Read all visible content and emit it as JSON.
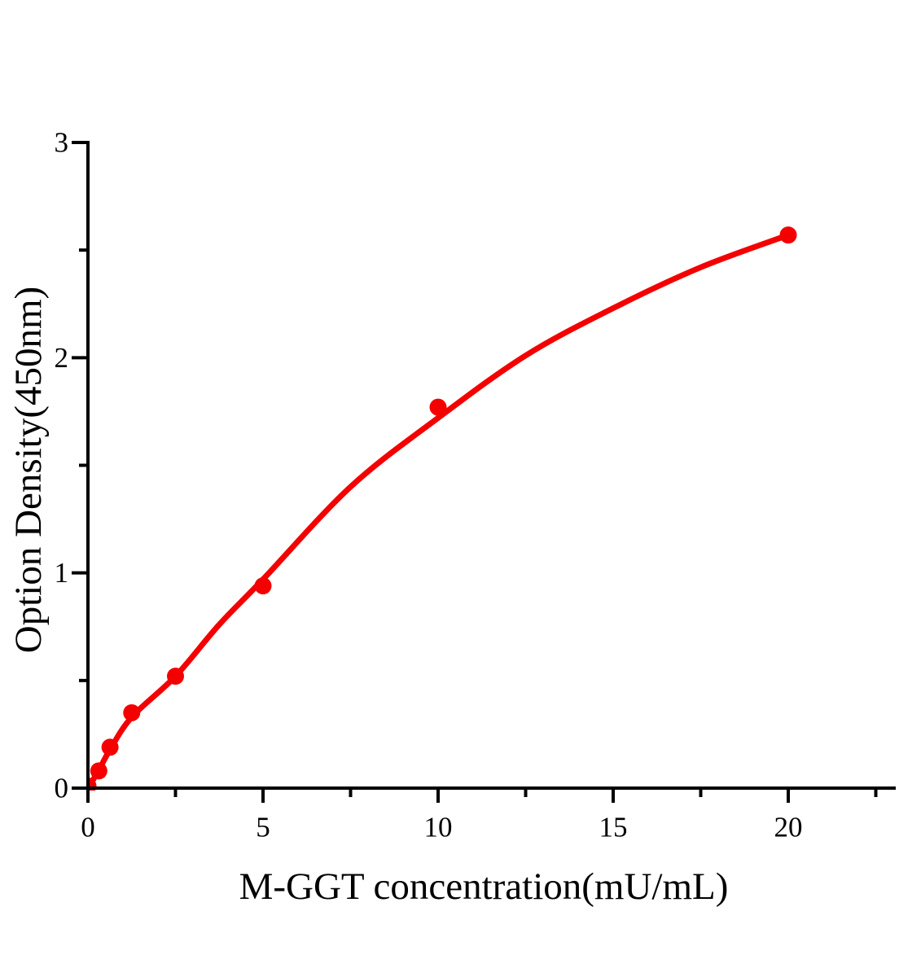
{
  "figure_background": "#ffffff",
  "chart_data": {
    "type": "scatter",
    "title": "",
    "xlabel": "M-GGT concentration(mU/mL)",
    "ylabel": "Option Density(450nm)",
    "xlim": [
      0,
      22.5
    ],
    "ylim": [
      0,
      3
    ],
    "grid": false,
    "legend": "none",
    "axis_color": "#000000",
    "text_color": "#000000",
    "accent_color": "#f40000",
    "x_major_ticks": [
      0,
      5,
      10,
      15,
      20
    ],
    "x_minor_ticks": [
      2.5,
      7.5,
      12.5,
      17.5,
      22.5
    ],
    "y_major_ticks": [
      0,
      1,
      2,
      3
    ],
    "y_minor_ticks": [
      0.5,
      1.5,
      2.5
    ],
    "series": [
      {
        "name": "standard-points",
        "type": "scatter",
        "color": "#f40000",
        "marker": "circle",
        "marker_radius": 10.5,
        "x": [
          0,
          0.31,
          0.63,
          1.25,
          2.5,
          5,
          10,
          20
        ],
        "y": [
          0.01,
          0.08,
          0.19,
          0.35,
          0.52,
          0.94,
          1.77,
          2.57
        ]
      },
      {
        "name": "fit-curve",
        "type": "line",
        "color": "#f40000",
        "stroke_width": 7,
        "x": [
          0,
          0.3,
          0.6,
          1.25,
          2.5,
          3.75,
          5,
          7.5,
          10,
          12.5,
          15,
          17.5,
          20
        ],
        "y": [
          0.0,
          0.08,
          0.17,
          0.33,
          0.52,
          0.76,
          0.97,
          1.4,
          1.72,
          2.01,
          2.23,
          2.42,
          2.57
        ]
      }
    ]
  }
}
